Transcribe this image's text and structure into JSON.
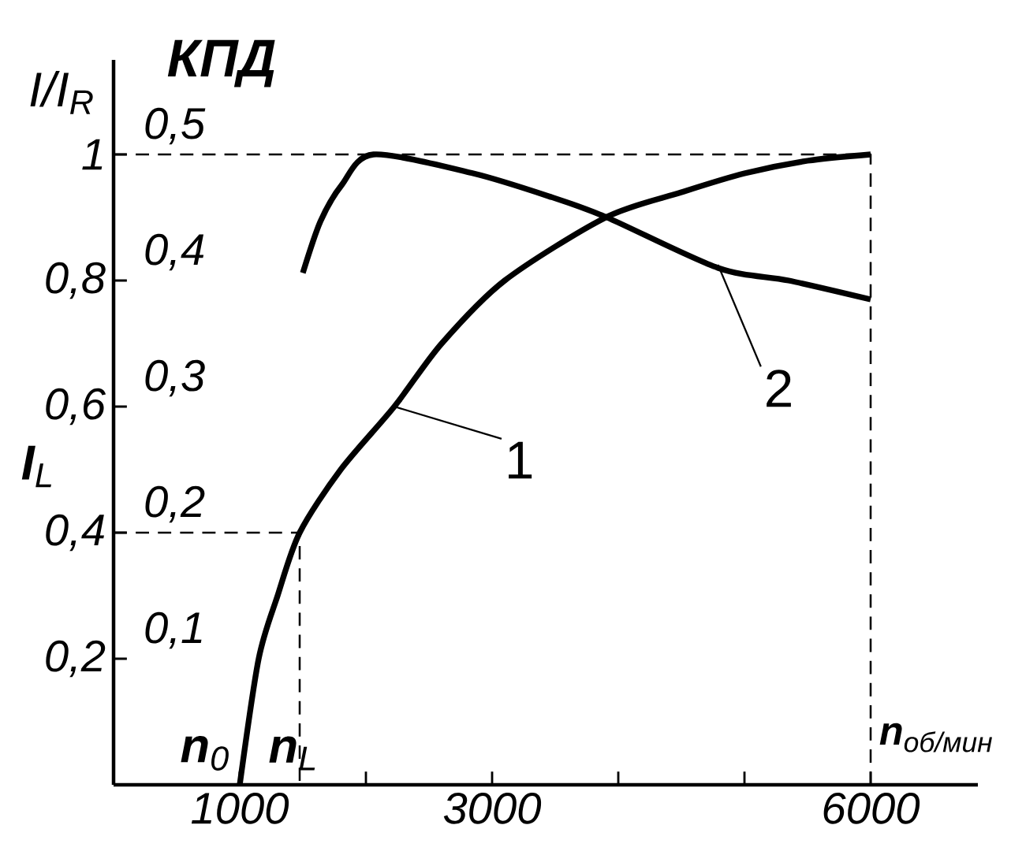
{
  "chart_data": {
    "type": "line",
    "xlabel": "**n**$_{об/мин}$",
    "ylabel": "I/I$_{R}$",
    "y2label": "**КПД**",
    "xlim": [
      0,
      6850
    ],
    "ylim": [
      0,
      1.15
    ],
    "y2lim": [
      0,
      0.575
    ],
    "xticks": [
      {
        "value": 1000,
        "label": "1000"
      },
      {
        "value": 2000,
        "label": null
      },
      {
        "value": 3000,
        "label": "3000"
      },
      {
        "value": 4000,
        "label": null
      },
      {
        "value": 5000,
        "label": null
      },
      {
        "value": 6000,
        "label": "6000"
      }
    ],
    "yticks": [
      {
        "value": 0.2,
        "label": "0,2"
      },
      {
        "value": 0.4,
        "label": "0,4"
      },
      {
        "value": 0.6,
        "label": "0,6"
      },
      {
        "value": 0.8,
        "label": "0,8"
      },
      {
        "value": 1,
        "label": "1"
      }
    ],
    "y2ticks": [
      {
        "value": 0.1,
        "label": "0,1"
      },
      {
        "value": 0.2,
        "label": "0,2"
      },
      {
        "value": 0.3,
        "label": "0,3"
      },
      {
        "value": 0.4,
        "label": "0,4"
      },
      {
        "value": 0.5,
        "label": "0,5"
      }
    ],
    "series": [
      {
        "color": "#000000",
        "x": [
          1000,
          1150,
          1300,
          1475,
          1800,
          2225,
          2600,
          3100,
          3900,
          4500,
          5000,
          5500,
          6000
        ],
        "values": [
          0,
          0.2,
          0.3,
          0.4,
          0.5,
          0.6,
          0.7,
          0.8,
          0.9,
          0.94,
          0.97,
          0.99,
          1.0
        ]
      },
      {
        "color": "#000000",
        "axis": "y2",
        "x": [
          1500,
          1640,
          1810,
          2060,
          2850,
          3475,
          3910,
          4790,
          5350,
          6000
        ],
        "values": [
          0.406,
          0.447,
          0.476,
          0.5,
          0.485,
          0.466,
          0.45,
          0.41,
          0.4,
          0.385
        ]
      },
      {
        "color": "#000000",
        "line_style": "dashed",
        "x": [
          0,
          6000,
          6000
        ],
        "values": [
          1,
          1,
          0
        ]
      },
      {
        "color": "#000000",
        "line_style": "dashed",
        "x": [
          0,
          1475,
          1475
        ],
        "values": [
          0.4,
          0.4,
          0
        ]
      }
    ],
    "annotations": [
      {
        "text": "1",
        "x": 2225,
        "y": 0.6
      },
      {
        "text": "2",
        "x": 4790,
        "y": 0.825
      },
      {
        "text": "**n**$_{0}$",
        "x": 1000,
        "y": 0
      },
      {
        "text": "**n**$_{L}$",
        "x": 1475,
        "y": 0
      },
      {
        "text": "**I**$_{L}$",
        "x": 0,
        "y": 0.4
      }
    ]
  }
}
